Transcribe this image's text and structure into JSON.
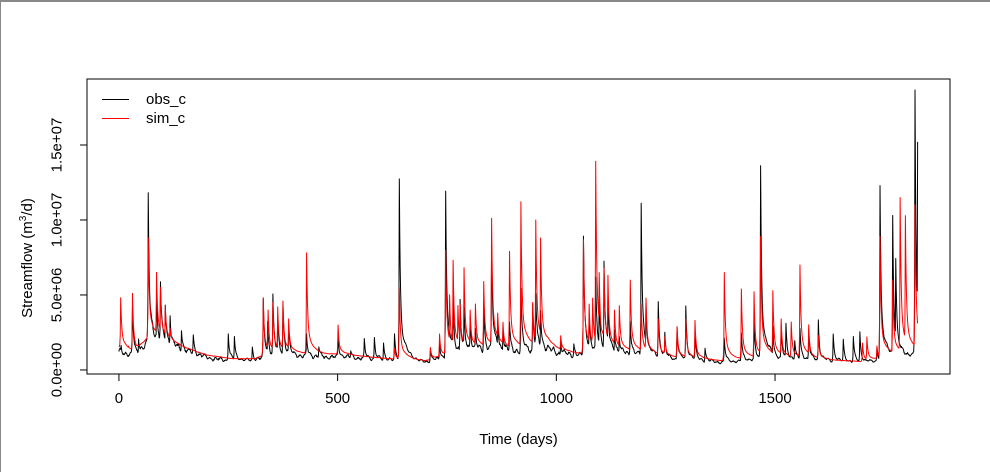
{
  "window": {
    "frame_color": "#888888",
    "background": "#ffffff"
  },
  "chart_data": {
    "type": "line",
    "title": "",
    "xlabel": "Time (days)",
    "ylabel": "Streamflow (m³/d)",
    "grid": false,
    "legend_position": "topleft",
    "x_ticks": [
      0,
      500,
      1000,
      1500
    ],
    "y_ticks": [
      {
        "value": 0,
        "label": "0.0e+00"
      },
      {
        "value": 5000000,
        "label": "5.0e+06"
      },
      {
        "value": 10000000,
        "label": "1.0e+07"
      },
      {
        "value": 15000000,
        "label": "1.5e+07"
      }
    ],
    "xlim": [
      -73,
      1900
    ],
    "ylim": [
      -270000,
      19400000
    ],
    "x_range_days": [
      0,
      1826
    ],
    "baseline_knots": [
      [
        0,
        1500000
      ],
      [
        40,
        1100000
      ],
      [
        70,
        2200000
      ],
      [
        110,
        2000000
      ],
      [
        150,
        1500000
      ],
      [
        200,
        1000000
      ],
      [
        260,
        750000
      ],
      [
        310,
        750000
      ],
      [
        340,
        1100000
      ],
      [
        380,
        1200000
      ],
      [
        420,
        1100000
      ],
      [
        460,
        1000000
      ],
      [
        500,
        1050000
      ],
      [
        540,
        950000
      ],
      [
        580,
        850000
      ],
      [
        620,
        750000
      ],
      [
        645,
        700000
      ],
      [
        700,
        600000
      ],
      [
        740,
        900000
      ],
      [
        770,
        1300000
      ],
      [
        810,
        1500000
      ],
      [
        860,
        1500000
      ],
      [
        900,
        1400000
      ],
      [
        940,
        1450000
      ],
      [
        980,
        1600000
      ],
      [
        1010,
        1300000
      ],
      [
        1055,
        1100000
      ],
      [
        1100,
        1500000
      ],
      [
        1150,
        1300000
      ],
      [
        1200,
        1100000
      ],
      [
        1250,
        900000
      ],
      [
        1300,
        750000
      ],
      [
        1350,
        650000
      ],
      [
        1400,
        600000
      ],
      [
        1440,
        700000
      ],
      [
        1480,
        850000
      ],
      [
        1530,
        800000
      ],
      [
        1570,
        750000
      ],
      [
        1620,
        650000
      ],
      [
        1670,
        600000
      ],
      [
        1705,
        550000
      ],
      [
        1735,
        700000
      ],
      [
        1760,
        900000
      ],
      [
        1790,
        1000000
      ],
      [
        1826,
        1100000
      ]
    ],
    "series": [
      {
        "name": "obs_c",
        "color": "#000000",
        "base_factor": 0.8,
        "noise_amp": 0.2,
        "spikes": [
          [
            5,
            1500000
          ],
          [
            31,
            4200000
          ],
          [
            45,
            2200000
          ],
          [
            67,
            11700000
          ],
          [
            86,
            4500000
          ],
          [
            95,
            5900000
          ],
          [
            106,
            4600000
          ],
          [
            117,
            3800000
          ],
          [
            143,
            2800000
          ],
          [
            170,
            2300000
          ],
          [
            250,
            2500000
          ],
          [
            264,
            2200000
          ],
          [
            305,
            1500000
          ],
          [
            330,
            4600000
          ],
          [
            340,
            3200000
          ],
          [
            352,
            5000000
          ],
          [
            363,
            3300000
          ],
          [
            375,
            4400000
          ],
          [
            388,
            2900000
          ],
          [
            429,
            2300000
          ],
          [
            457,
            1600000
          ],
          [
            501,
            2200000
          ],
          [
            530,
            1300000
          ],
          [
            561,
            2000000
          ],
          [
            584,
            2100000
          ],
          [
            605,
            1800000
          ],
          [
            630,
            2300000
          ],
          [
            641,
            12800000
          ],
          [
            712,
            1300000
          ],
          [
            733,
            1800000
          ],
          [
            747,
            12000000
          ],
          [
            764,
            4500000
          ],
          [
            780,
            4800000
          ],
          [
            789,
            4000000
          ],
          [
            803,
            3600000
          ],
          [
            815,
            2800000
          ],
          [
            834,
            4200000
          ],
          [
            852,
            8200000
          ],
          [
            866,
            3400000
          ],
          [
            878,
            2800000
          ],
          [
            893,
            3100000
          ],
          [
            919,
            5300000
          ],
          [
            946,
            4300000
          ],
          [
            953,
            5100000
          ],
          [
            964,
            4000000
          ],
          [
            1010,
            2000000
          ],
          [
            1040,
            1800000
          ],
          [
            1062,
            9000000
          ],
          [
            1075,
            3800000
          ],
          [
            1090,
            6000000
          ],
          [
            1098,
            4800000
          ],
          [
            1109,
            7400000
          ],
          [
            1118,
            4800000
          ],
          [
            1133,
            2800000
          ],
          [
            1144,
            2400000
          ],
          [
            1169,
            3400000
          ],
          [
            1194,
            11200000
          ],
          [
            1205,
            4600000
          ],
          [
            1233,
            4600000
          ],
          [
            1248,
            2400000
          ],
          [
            1276,
            2900000
          ],
          [
            1296,
            4200000
          ],
          [
            1317,
            2300000
          ],
          [
            1340,
            1500000
          ],
          [
            1384,
            2100000
          ],
          [
            1423,
            2500000
          ],
          [
            1452,
            3000000
          ],
          [
            1467,
            13600000
          ],
          [
            1495,
            3000000
          ],
          [
            1514,
            2800000
          ],
          [
            1525,
            3000000
          ],
          [
            1545,
            2000000
          ],
          [
            1557,
            2800000
          ],
          [
            1577,
            2700000
          ],
          [
            1599,
            3300000
          ],
          [
            1633,
            2400000
          ],
          [
            1656,
            2000000
          ],
          [
            1679,
            2200000
          ],
          [
            1694,
            2500000
          ],
          [
            1733,
            1500000
          ],
          [
            1740,
            12300000
          ],
          [
            1769,
            10300000
          ],
          [
            1776,
            7400000
          ],
          [
            1820,
            18700000
          ],
          [
            1826,
            15200000
          ]
        ]
      },
      {
        "name": "sim_c",
        "color": "#ff0000",
        "base_factor": 1.0,
        "noise_amp": 0.015,
        "spikes": [
          [
            4,
            4800000
          ],
          [
            14,
            1800000
          ],
          [
            22,
            1600000
          ],
          [
            31,
            5100000
          ],
          [
            67,
            8800000
          ],
          [
            86,
            6500000
          ],
          [
            95,
            5500000
          ],
          [
            106,
            4300000
          ],
          [
            117,
            2800000
          ],
          [
            330,
            4800000
          ],
          [
            341,
            4000000
          ],
          [
            352,
            4500000
          ],
          [
            363,
            4200000
          ],
          [
            375,
            4600000
          ],
          [
            388,
            3400000
          ],
          [
            429,
            7800000
          ],
          [
            501,
            3000000
          ],
          [
            630,
            1400000
          ],
          [
            641,
            5500000
          ],
          [
            712,
            1500000
          ],
          [
            733,
            2400000
          ],
          [
            747,
            8000000
          ],
          [
            756,
            5000000
          ],
          [
            764,
            7300000
          ],
          [
            775,
            4300000
          ],
          [
            780,
            4400000
          ],
          [
            789,
            6800000
          ],
          [
            803,
            4000000
          ],
          [
            815,
            4400000
          ],
          [
            834,
            5900000
          ],
          [
            852,
            10100000
          ],
          [
            866,
            3800000
          ],
          [
            878,
            3200000
          ],
          [
            893,
            7900000
          ],
          [
            919,
            11200000
          ],
          [
            946,
            4500000
          ],
          [
            953,
            10000000
          ],
          [
            964,
            8800000
          ],
          [
            1010,
            2300000
          ],
          [
            1062,
            8700000
          ],
          [
            1075,
            4400000
          ],
          [
            1083,
            4800000
          ],
          [
            1090,
            13900000
          ],
          [
            1098,
            6500000
          ],
          [
            1109,
            6800000
          ],
          [
            1118,
            6300000
          ],
          [
            1133,
            4000000
          ],
          [
            1144,
            4300000
          ],
          [
            1169,
            6000000
          ],
          [
            1194,
            4400000
          ],
          [
            1205,
            4800000
          ],
          [
            1233,
            3400000
          ],
          [
            1248,
            2200000
          ],
          [
            1276,
            2900000
          ],
          [
            1296,
            3400000
          ],
          [
            1317,
            3300000
          ],
          [
            1384,
            6500000
          ],
          [
            1423,
            5400000
          ],
          [
            1452,
            5200000
          ],
          [
            1467,
            8900000
          ],
          [
            1495,
            5300000
          ],
          [
            1514,
            3400000
          ],
          [
            1537,
            3200000
          ],
          [
            1557,
            7000000
          ],
          [
            1577,
            3000000
          ],
          [
            1599,
            2300000
          ],
          [
            1700,
            1800000
          ],
          [
            1710,
            2200000
          ],
          [
            1733,
            1600000
          ],
          [
            1740,
            8900000
          ],
          [
            1769,
            6000000
          ],
          [
            1786,
            11500000
          ],
          [
            1798,
            10300000
          ],
          [
            1820,
            11000000
          ]
        ]
      }
    ]
  }
}
